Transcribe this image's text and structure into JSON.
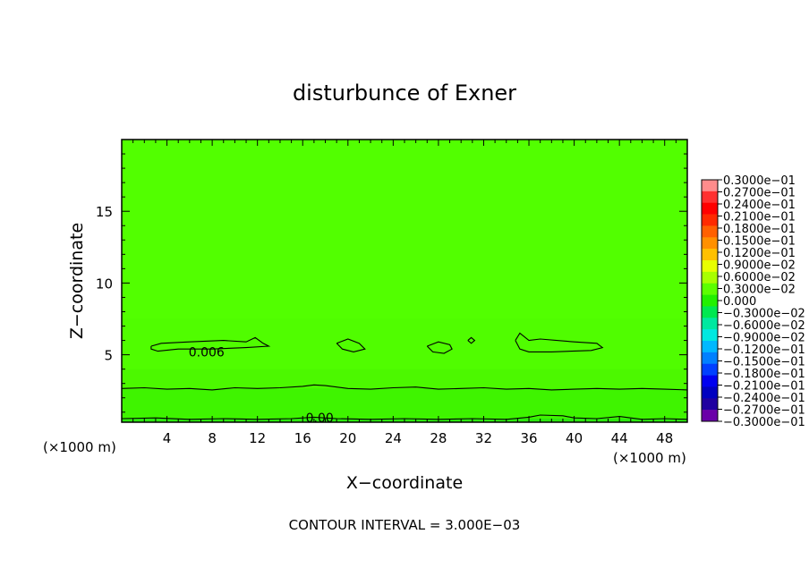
{
  "chart_data": {
    "type": "contour",
    "title": "disturbunce of Exner",
    "xlabel": "X−coordinate",
    "ylabel": "Z−coordinate",
    "x_unit_left": "(×1000 m)",
    "x_unit_right": "(×1000 m)",
    "footer": "CONTOUR INTERVAL = 3.000E−03",
    "xlim": [
      0,
      50
    ],
    "ylim": [
      0.3,
      20
    ],
    "x_ticks": [
      "4",
      "8",
      "12",
      "16",
      "20",
      "24",
      "28",
      "32",
      "36",
      "40",
      "44",
      "48"
    ],
    "x_tick_values": [
      4,
      8,
      12,
      16,
      20,
      24,
      28,
      32,
      36,
      40,
      44,
      48
    ],
    "y_ticks": [
      "5",
      "10",
      "15"
    ],
    "y_tick_values": [
      5,
      10,
      15
    ],
    "contour_interval": 0.003,
    "contour_labels": [
      {
        "text": "0.006",
        "x": 7.5,
        "z": 5.2
      },
      {
        "text": "0.00",
        "x": 17.5,
        "z": 0.6
      }
    ],
    "contours_0006": [
      [
        [
          2.6,
          5.6
        ],
        [
          3.5,
          5.8
        ],
        [
          6.0,
          5.9
        ],
        [
          9.0,
          6.0
        ],
        [
          11.0,
          5.9
        ],
        [
          11.8,
          6.2
        ],
        [
          12.5,
          5.8
        ],
        [
          13.0,
          5.6
        ],
        [
          11.0,
          5.5
        ],
        [
          8.0,
          5.4
        ],
        [
          5.0,
          5.4
        ],
        [
          3.2,
          5.25
        ],
        [
          2.6,
          5.4
        ],
        [
          2.6,
          5.6
        ]
      ],
      [
        [
          19.0,
          5.8
        ],
        [
          20.0,
          6.1
        ],
        [
          21.0,
          5.8
        ],
        [
          21.5,
          5.4
        ],
        [
          20.5,
          5.2
        ],
        [
          19.5,
          5.4
        ],
        [
          19.0,
          5.8
        ]
      ],
      [
        [
          27.0,
          5.6
        ],
        [
          28.0,
          5.9
        ],
        [
          29.0,
          5.7
        ],
        [
          29.2,
          5.4
        ],
        [
          28.5,
          5.1
        ],
        [
          27.5,
          5.2
        ],
        [
          27.0,
          5.6
        ]
      ],
      [
        [
          30.6,
          6.0
        ],
        [
          30.9,
          6.2
        ],
        [
          31.2,
          6.0
        ],
        [
          30.9,
          5.8
        ],
        [
          30.6,
          6.0
        ]
      ],
      [
        [
          34.8,
          6.0
        ],
        [
          35.2,
          6.5
        ],
        [
          36.0,
          6.0
        ],
        [
          37.0,
          6.1
        ],
        [
          40.0,
          5.9
        ],
        [
          42.0,
          5.8
        ],
        [
          42.5,
          5.5
        ],
        [
          41.5,
          5.3
        ],
        [
          38.0,
          5.2
        ],
        [
          36.0,
          5.2
        ],
        [
          35.2,
          5.4
        ],
        [
          34.8,
          6.0
        ]
      ]
    ],
    "contours_0003": [
      [
        [
          0,
          2.65
        ],
        [
          2,
          2.7
        ],
        [
          4,
          2.6
        ],
        [
          6,
          2.65
        ],
        [
          8,
          2.55
        ],
        [
          10,
          2.7
        ],
        [
          12,
          2.65
        ],
        [
          14,
          2.7
        ],
        [
          16,
          2.8
        ],
        [
          17,
          2.9
        ],
        [
          18,
          2.85
        ],
        [
          20,
          2.65
        ],
        [
          22,
          2.6
        ],
        [
          24,
          2.7
        ],
        [
          26,
          2.75
        ],
        [
          28,
          2.6
        ],
        [
          30,
          2.65
        ],
        [
          32,
          2.7
        ],
        [
          34,
          2.6
        ],
        [
          36,
          2.65
        ],
        [
          38,
          2.55
        ],
        [
          40,
          2.6
        ],
        [
          42,
          2.65
        ],
        [
          44,
          2.6
        ],
        [
          46,
          2.65
        ],
        [
          48,
          2.6
        ],
        [
          50,
          2.55
        ]
      ]
    ],
    "contours_0000": [
      [
        [
          0,
          0.55
        ],
        [
          3,
          0.6
        ],
        [
          6,
          0.5
        ],
        [
          9,
          0.55
        ],
        [
          12,
          0.5
        ],
        [
          15,
          0.55
        ],
        [
          17,
          0.65
        ],
        [
          19,
          0.55
        ],
        [
          22,
          0.5
        ],
        [
          25,
          0.55
        ],
        [
          28,
          0.5
        ],
        [
          31,
          0.55
        ],
        [
          34,
          0.5
        ],
        [
          36,
          0.65
        ],
        [
          37,
          0.8
        ],
        [
          39,
          0.75
        ],
        [
          40,
          0.6
        ],
        [
          42,
          0.55
        ],
        [
          44,
          0.7
        ],
        [
          46,
          0.5
        ],
        [
          48,
          0.55
        ],
        [
          50,
          0.5
        ]
      ]
    ],
    "fill_bands": [
      {
        "z_top": 20,
        "color": "#52ff00"
      },
      {
        "z_top": 7.5,
        "color": "#50fd00"
      },
      {
        "z_top": 4.0,
        "color": "#4cf800"
      },
      {
        "z_top": 2.65,
        "color": "#3ff400"
      },
      {
        "z_top": 0.55,
        "color": "#2ce80f"
      }
    ],
    "colorbar": {
      "labels": [
        "0.3000e−01",
        "0.2700e−01",
        "0.2400e−01",
        "0.2100e−01",
        "0.1800e−01",
        "0.1500e−01",
        "0.1200e−01",
        "0.9000e−02",
        "0.6000e−02",
        "0.3000e−02",
        "0.000",
        "−0.3000e−02",
        "−0.6000e−02",
        "−0.9000e−02",
        "−0.1200e−01",
        "−0.1500e−01",
        "−0.1800e−01",
        "−0.2100e−01",
        "−0.2400e−01",
        "−0.2700e−01",
        "−0.3000e−01"
      ],
      "colors": [
        "#ff8c8c",
        "#ff3030",
        "#ff0000",
        "#ff2a00",
        "#ff6000",
        "#ff9000",
        "#ffc000",
        "#e8ff00",
        "#a8ff00",
        "#5cff00",
        "#22f000",
        "#00e850",
        "#00e8a0",
        "#00e8e0",
        "#00b8ff",
        "#0080ff",
        "#0040ff",
        "#0000f0",
        "#0000c0",
        "#2000a0",
        "#6a00a8"
      ]
    }
  }
}
